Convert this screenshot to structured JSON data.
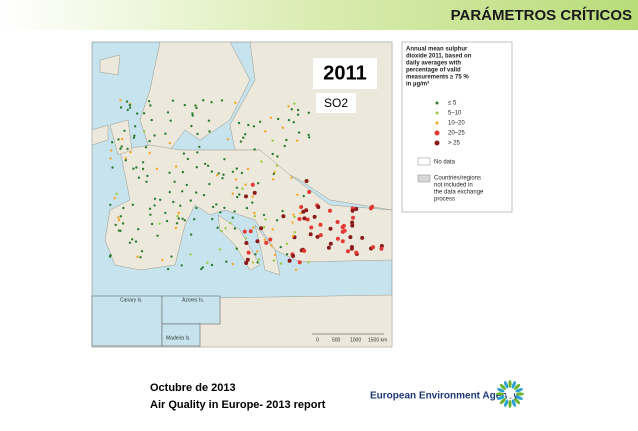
{
  "header": {
    "title": "PARÁMETROS CRÍTICOS"
  },
  "map": {
    "year": "2011",
    "pollutant": "SO2",
    "insets": [
      "Canary Is.",
      "Azores Is.",
      "Madeira Is."
    ],
    "scale": [
      "0",
      "500",
      "1000",
      "1500 km"
    ],
    "legend": {
      "title": [
        "Annual mean sulphur",
        "dioxide 2011, based on",
        "daily averages with",
        "percentage of valid",
        "measurements ≥ 75 %",
        "in µg/m³"
      ],
      "items": [
        {
          "label": "≤ 5",
          "color": "#2e7d32"
        },
        {
          "label": "5–10",
          "color": "#9ccc3c"
        },
        {
          "label": "10–20",
          "color": "#f5a623"
        },
        {
          "label": "20–25",
          "color": "#e53935"
        },
        {
          "label": "> 25",
          "color": "#8b1a1a"
        }
      ],
      "no_data": "No data",
      "excluded": [
        "Countries/regions",
        "not included in",
        "the data exchange",
        "process"
      ]
    }
  },
  "footer": {
    "date": "Octubre de 2013",
    "report": "Air Quality in Europe- 2013 report",
    "agency": "European Environment Agency"
  }
}
